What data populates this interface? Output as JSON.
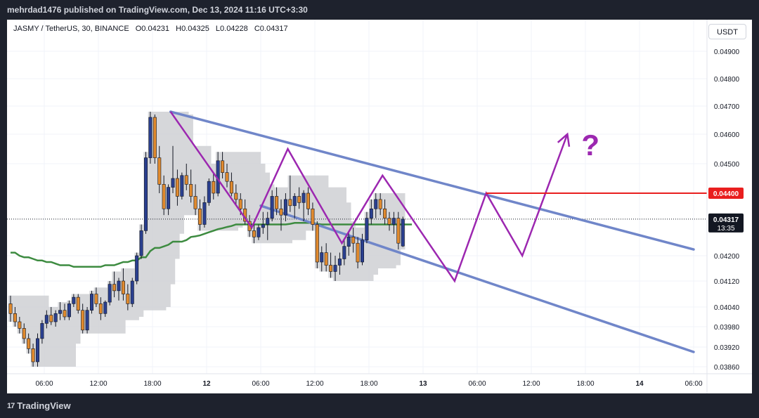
{
  "header": {
    "publisher_line": "mehrdad1476 published on TradingView.com, Dec 13, 2024 11:16 UTC+3:30"
  },
  "legend": {
    "symbol": "JASMY / TetherUS, 30, BINANCE",
    "open_label": "O",
    "open": "0.04231",
    "high_label": "H",
    "high": "0.04325",
    "low_label": "L",
    "low": "0.04228",
    "close_label": "C",
    "close": "0.04317"
  },
  "currency_button": "USDT",
  "footer": {
    "brand": "TradingView",
    "brand_mark": "17"
  },
  "colors": {
    "bull": "#2a3f8f",
    "bear": "#e08a2e",
    "channel": "#7086c9",
    "zigzag": "#9c27b0",
    "baseline": "#3d8b40",
    "cloud": "#cfd0d4",
    "resistance": "#e91e1e"
  },
  "chart_data": {
    "type": "candlestick",
    "symbol": "JASMY / TetherUS",
    "interval": "30",
    "exchange": "BINANCE",
    "y_ticks": [
      "0.04900",
      "0.04800",
      "0.04700",
      "0.04600",
      "0.04500",
      "0.04200",
      "0.04120",
      "0.04040",
      "0.03980",
      "0.03920",
      "0.03860"
    ],
    "x_ticks": [
      "06:00",
      "12:00",
      "18:00",
      "12",
      "06:00",
      "12:00",
      "18:00",
      "13",
      "06:00",
      "12:00",
      "18:00",
      "14",
      "06:00"
    ],
    "last_price": "0.04317",
    "countdown": "13:35",
    "resistance_level": "0.04400",
    "annotation": "?",
    "candles": [
      {
        "o": 0.0405,
        "h": 0.04075,
        "l": 0.03995,
        "c": 0.0402
      },
      {
        "o": 0.0402,
        "h": 0.0404,
        "l": 0.0398,
        "c": 0.03995
      },
      {
        "o": 0.03995,
        "h": 0.0401,
        "l": 0.0396,
        "c": 0.03975
      },
      {
        "o": 0.03975,
        "h": 0.0399,
        "l": 0.0393,
        "c": 0.03945
      },
      {
        "o": 0.03945,
        "h": 0.0396,
        "l": 0.039,
        "c": 0.03915
      },
      {
        "o": 0.03915,
        "h": 0.0393,
        "l": 0.0386,
        "c": 0.03875
      },
      {
        "o": 0.03875,
        "h": 0.0396,
        "l": 0.0386,
        "c": 0.03945
      },
      {
        "o": 0.03945,
        "h": 0.04,
        "l": 0.0393,
        "c": 0.0399
      },
      {
        "o": 0.0399,
        "h": 0.0403,
        "l": 0.03975,
        "c": 0.04015
      },
      {
        "o": 0.04015,
        "h": 0.0404,
        "l": 0.03985,
        "c": 0.03995
      },
      {
        "o": 0.03995,
        "h": 0.0403,
        "l": 0.0398,
        "c": 0.0402
      },
      {
        "o": 0.0402,
        "h": 0.04055,
        "l": 0.04,
        "c": 0.0403
      },
      {
        "o": 0.0403,
        "h": 0.0405,
        "l": 0.04,
        "c": 0.0401
      },
      {
        "o": 0.0401,
        "h": 0.0406,
        "l": 0.04,
        "c": 0.0405
      },
      {
        "o": 0.0405,
        "h": 0.0408,
        "l": 0.0404,
        "c": 0.0407
      },
      {
        "o": 0.0407,
        "h": 0.0408,
        "l": 0.0402,
        "c": 0.0403
      },
      {
        "o": 0.0403,
        "h": 0.0405,
        "l": 0.0396,
        "c": 0.0397
      },
      {
        "o": 0.0397,
        "h": 0.0404,
        "l": 0.0396,
        "c": 0.0403
      },
      {
        "o": 0.0403,
        "h": 0.0409,
        "l": 0.0402,
        "c": 0.0408
      },
      {
        "o": 0.0408,
        "h": 0.041,
        "l": 0.0404,
        "c": 0.0405
      },
      {
        "o": 0.0405,
        "h": 0.0407,
        "l": 0.04,
        "c": 0.0402
      },
      {
        "o": 0.0402,
        "h": 0.0406,
        "l": 0.0401,
        "c": 0.04055
      },
      {
        "o": 0.04055,
        "h": 0.0412,
        "l": 0.04045,
        "c": 0.0411
      },
      {
        "o": 0.0411,
        "h": 0.0415,
        "l": 0.0407,
        "c": 0.0409
      },
      {
        "o": 0.0409,
        "h": 0.0413,
        "l": 0.0406,
        "c": 0.0412
      },
      {
        "o": 0.0412,
        "h": 0.0416,
        "l": 0.0406,
        "c": 0.0408
      },
      {
        "o": 0.0408,
        "h": 0.0411,
        "l": 0.0403,
        "c": 0.0405
      },
      {
        "o": 0.0405,
        "h": 0.0413,
        "l": 0.0404,
        "c": 0.0412
      },
      {
        "o": 0.0412,
        "h": 0.0421,
        "l": 0.0411,
        "c": 0.042
      },
      {
        "o": 0.042,
        "h": 0.043,
        "l": 0.0419,
        "c": 0.0428
      },
      {
        "o": 0.0428,
        "h": 0.0454,
        "l": 0.0427,
        "c": 0.0452
      },
      {
        "o": 0.0452,
        "h": 0.0468,
        "l": 0.045,
        "c": 0.0466
      },
      {
        "o": 0.0466,
        "h": 0.0467,
        "l": 0.045,
        "c": 0.0452
      },
      {
        "o": 0.0452,
        "h": 0.0456,
        "l": 0.044,
        "c": 0.0443
      },
      {
        "o": 0.0443,
        "h": 0.0446,
        "l": 0.0433,
        "c": 0.0435
      },
      {
        "o": 0.0435,
        "h": 0.0443,
        "l": 0.0433,
        "c": 0.0442
      },
      {
        "o": 0.0442,
        "h": 0.0456,
        "l": 0.044,
        "c": 0.0445
      },
      {
        "o": 0.0445,
        "h": 0.0448,
        "l": 0.0436,
        "c": 0.0439
      },
      {
        "o": 0.0439,
        "h": 0.0447,
        "l": 0.0438,
        "c": 0.0446
      },
      {
        "o": 0.0446,
        "h": 0.045,
        "l": 0.0441,
        "c": 0.0443
      },
      {
        "o": 0.0443,
        "h": 0.0448,
        "l": 0.0437,
        "c": 0.0439
      },
      {
        "o": 0.0439,
        "h": 0.0443,
        "l": 0.0433,
        "c": 0.0435
      },
      {
        "o": 0.0435,
        "h": 0.0438,
        "l": 0.0428,
        "c": 0.043
      },
      {
        "o": 0.043,
        "h": 0.0439,
        "l": 0.0429,
        "c": 0.0437
      },
      {
        "o": 0.0437,
        "h": 0.0445,
        "l": 0.0436,
        "c": 0.0444
      },
      {
        "o": 0.0444,
        "h": 0.0447,
        "l": 0.0438,
        "c": 0.044
      },
      {
        "o": 0.044,
        "h": 0.0454,
        "l": 0.0439,
        "c": 0.0451
      },
      {
        "o": 0.0451,
        "h": 0.0454,
        "l": 0.0445,
        "c": 0.0447
      },
      {
        "o": 0.0447,
        "h": 0.045,
        "l": 0.0442,
        "c": 0.0444
      },
      {
        "o": 0.0444,
        "h": 0.0447,
        "l": 0.0439,
        "c": 0.044
      },
      {
        "o": 0.044,
        "h": 0.0443,
        "l": 0.0436,
        "c": 0.0438
      },
      {
        "o": 0.0438,
        "h": 0.044,
        "l": 0.0433,
        "c": 0.0435
      },
      {
        "o": 0.0435,
        "h": 0.0438,
        "l": 0.043,
        "c": 0.0431
      },
      {
        "o": 0.0431,
        "h": 0.0433,
        "l": 0.0426,
        "c": 0.0428
      },
      {
        "o": 0.0428,
        "h": 0.0431,
        "l": 0.0424,
        "c": 0.0426
      },
      {
        "o": 0.0426,
        "h": 0.043,
        "l": 0.0425,
        "c": 0.0429
      },
      {
        "o": 0.0429,
        "h": 0.0434,
        "l": 0.0427,
        "c": 0.043
      },
      {
        "o": 0.043,
        "h": 0.0434,
        "l": 0.0425,
        "c": 0.0432
      },
      {
        "o": 0.0432,
        "h": 0.0441,
        "l": 0.0431,
        "c": 0.0439
      },
      {
        "o": 0.0439,
        "h": 0.0442,
        "l": 0.0433,
        "c": 0.0435
      },
      {
        "o": 0.0435,
        "h": 0.0438,
        "l": 0.0428,
        "c": 0.0433
      },
      {
        "o": 0.0433,
        "h": 0.044,
        "l": 0.0431,
        "c": 0.0438
      },
      {
        "o": 0.0438,
        "h": 0.0446,
        "l": 0.0434,
        "c": 0.0436
      },
      {
        "o": 0.0436,
        "h": 0.044,
        "l": 0.0432,
        "c": 0.0439
      },
      {
        "o": 0.0439,
        "h": 0.0442,
        "l": 0.0435,
        "c": 0.0437
      },
      {
        "o": 0.0437,
        "h": 0.0441,
        "l": 0.0431,
        "c": 0.044
      },
      {
        "o": 0.044,
        "h": 0.0442,
        "l": 0.0433,
        "c": 0.0435
      },
      {
        "o": 0.0435,
        "h": 0.0437,
        "l": 0.0428,
        "c": 0.043
      },
      {
        "o": 0.043,
        "h": 0.0431,
        "l": 0.0416,
        "c": 0.0418
      },
      {
        "o": 0.0418,
        "h": 0.0423,
        "l": 0.0415,
        "c": 0.0421
      },
      {
        "o": 0.0421,
        "h": 0.0424,
        "l": 0.0415,
        "c": 0.0417
      },
      {
        "o": 0.0417,
        "h": 0.0421,
        "l": 0.0413,
        "c": 0.0415
      },
      {
        "o": 0.0415,
        "h": 0.042,
        "l": 0.0412,
        "c": 0.0417
      },
      {
        "o": 0.0417,
        "h": 0.0421,
        "l": 0.0414,
        "c": 0.0419
      },
      {
        "o": 0.0419,
        "h": 0.0425,
        "l": 0.0417,
        "c": 0.0423
      },
      {
        "o": 0.0423,
        "h": 0.0428,
        "l": 0.042,
        "c": 0.0426
      },
      {
        "o": 0.0426,
        "h": 0.0429,
        "l": 0.0421,
        "c": 0.0424
      },
      {
        "o": 0.0424,
        "h": 0.0426,
        "l": 0.0416,
        "c": 0.0418
      },
      {
        "o": 0.0418,
        "h": 0.0427,
        "l": 0.0417,
        "c": 0.0425
      },
      {
        "o": 0.0425,
        "h": 0.0434,
        "l": 0.0424,
        "c": 0.0432
      },
      {
        "o": 0.0432,
        "h": 0.0438,
        "l": 0.043,
        "c": 0.0435
      },
      {
        "o": 0.0435,
        "h": 0.044,
        "l": 0.0432,
        "c": 0.0438
      },
      {
        "o": 0.0438,
        "h": 0.044,
        "l": 0.0433,
        "c": 0.0435
      },
      {
        "o": 0.0435,
        "h": 0.0438,
        "l": 0.043,
        "c": 0.0432
      },
      {
        "o": 0.0432,
        "h": 0.0434,
        "l": 0.0428,
        "c": 0.043
      },
      {
        "o": 0.043,
        "h": 0.0434,
        "l": 0.0427,
        "c": 0.0432
      },
      {
        "o": 0.0432,
        "h": 0.0434,
        "l": 0.0422,
        "c": 0.0424
      },
      {
        "o": 0.04231,
        "h": 0.04325,
        "l": 0.04228,
        "c": 0.04317
      }
    ],
    "baseline_ma": [
      0.0421,
      0.0421,
      0.042,
      0.04195,
      0.04195,
      0.0419,
      0.04185,
      0.04185,
      0.0418,
      0.0418,
      0.04175,
      0.0417,
      0.0417,
      0.0417,
      0.04165,
      0.04165,
      0.04165,
      0.04165,
      0.04165,
      0.04165,
      0.04165,
      0.0417,
      0.0417,
      0.0417,
      0.04175,
      0.0418,
      0.0418,
      0.04185,
      0.04185,
      0.04195,
      0.04195,
      0.04215,
      0.04225,
      0.04225,
      0.0423,
      0.04235,
      0.04245,
      0.04245,
      0.04245,
      0.0425,
      0.0426,
      0.04262,
      0.04265,
      0.0427,
      0.04275,
      0.0428,
      0.04285,
      0.04288,
      0.04292,
      0.04295,
      0.043,
      0.043,
      0.043,
      0.043,
      0.043,
      0.043,
      0.043,
      0.043,
      0.043,
      0.043,
      0.043,
      0.043,
      0.04302,
      0.04305,
      0.04305,
      0.04305,
      0.04305,
      0.04305,
      0.04302,
      0.043,
      0.043,
      0.043,
      0.043,
      0.043,
      0.043,
      0.043,
      0.043,
      0.043,
      0.043,
      0.043,
      0.043,
      0.043,
      0.043,
      0.043,
      0.043,
      0.043,
      0.043,
      0.043,
      0.043,
      0.043
    ],
    "channel_upper": [
      [
        "2024-12-11T20:00",
        0.0468
      ],
      [
        "2024-12-14T06:00",
        0.0422
      ]
    ],
    "channel_lower": [
      [
        "2024-12-12T06:00",
        0.0436
      ],
      [
        "2024-12-14T06:00",
        0.03905
      ]
    ],
    "zigzag": [
      [
        "2024-12-11T20:00",
        0.0468
      ],
      [
        "2024-12-12T05:00",
        0.0429
      ],
      [
        "2024-12-12T09:00",
        0.0455
      ],
      [
        "2024-12-12T15:00",
        0.0424
      ],
      [
        "2024-12-12T19:30",
        0.0446
      ],
      [
        "2024-12-13T03:30",
        0.0412
      ],
      [
        "2024-12-13T07:00",
        0.044
      ],
      [
        "2024-12-13T11:00",
        0.042
      ],
      [
        "2024-12-13T16:00",
        0.046
      ]
    ]
  }
}
